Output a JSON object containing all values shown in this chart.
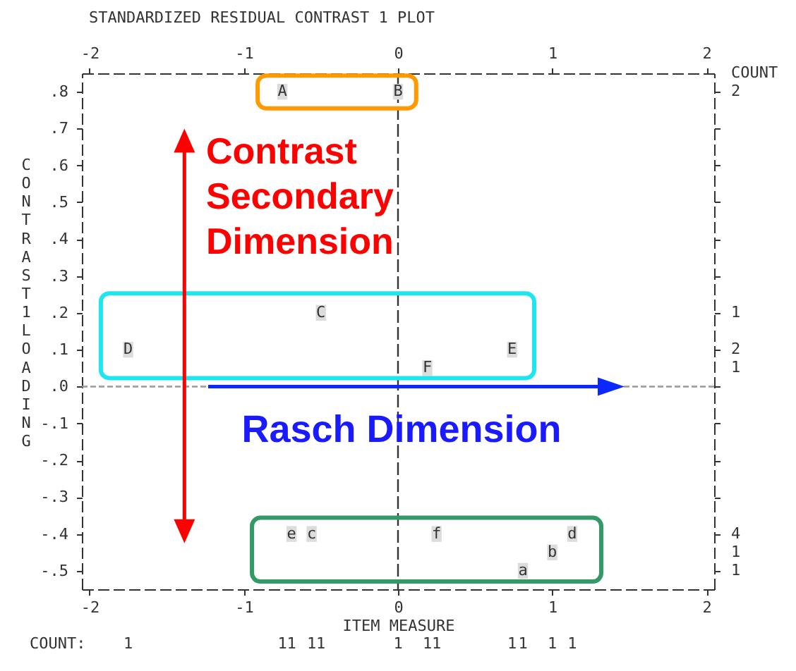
{
  "chart_data": {
    "type": "scatter",
    "marker": "square",
    "title": "STANDARDIZED RESIDUAL CONTRAST 1 PLOT",
    "xlabel": "ITEM MEASURE",
    "ylabel": "CONTRAST 1 LOADING",
    "xlim": [
      -2.05,
      2.05
    ],
    "xticks": [
      -2,
      -1,
      0,
      1,
      2
    ],
    "x2lim": [
      -2.05,
      2.05
    ],
    "x2ticks": [
      -2,
      -1,
      0,
      1,
      2
    ],
    "ylim": [
      -0.55,
      0.85
    ],
    "yticks": [
      {
        "value": 0.8,
        "label": ".8"
      },
      {
        "value": 0.7,
        "label": ".7"
      },
      {
        "value": 0.6,
        "label": ".6"
      },
      {
        "value": 0.5,
        "label": ".5"
      },
      {
        "value": 0.4,
        "label": ".4"
      },
      {
        "value": 0.3,
        "label": ".3"
      },
      {
        "value": 0.2,
        "label": ".2"
      },
      {
        "value": 0.1,
        "label": ".1"
      },
      {
        "value": 0,
        "label": ".0"
      },
      {
        "value": -0.1,
        "label": "-.1"
      },
      {
        "value": -0.2,
        "label": "-.2"
      },
      {
        "value": -0.3,
        "label": "-.3"
      },
      {
        "value": -0.4,
        "label": "-.4"
      },
      {
        "value": -0.5,
        "label": "-.5"
      }
    ],
    "series": [
      {
        "name": "A",
        "color": "#dcdcdc",
        "x": [
          -0.75
        ],
        "values": [
          0.8
        ]
      },
      {
        "name": "B",
        "color": "#dcdcdc",
        "x": [
          0
        ],
        "values": [
          0.8
        ]
      },
      {
        "name": "C",
        "color": "#dcdcdc",
        "x": [
          -0.5
        ],
        "values": [
          0.2
        ]
      },
      {
        "name": "D",
        "color": "#dcdcdc",
        "x": [
          -1.75
        ],
        "values": [
          0.1
        ]
      },
      {
        "name": "E",
        "color": "#dcdcdc",
        "x": [
          0.74
        ],
        "values": [
          0.1
        ]
      },
      {
        "name": "F",
        "color": "#dcdcdc",
        "x": [
          0.19
        ],
        "values": [
          0.05
        ]
      },
      {
        "name": "a",
        "color": "#dcdcdc",
        "x": [
          0.81
        ],
        "values": [
          -0.5
        ]
      },
      {
        "name": "b",
        "color": "#dcdcdc",
        "x": [
          1.0
        ],
        "values": [
          -0.45
        ]
      },
      {
        "name": "c",
        "color": "#dcdcdc",
        "x": [
          -0.56
        ],
        "values": [
          -0.4
        ]
      },
      {
        "name": "d",
        "color": "#dcdcdc",
        "x": [
          1.13
        ],
        "values": [
          -0.4
        ]
      },
      {
        "name": "e",
        "color": "#dcdcdc",
        "x": [
          -0.69
        ],
        "values": [
          -0.4
        ]
      },
      {
        "name": "f",
        "color": "#dcdcdc",
        "x": [
          0.25
        ],
        "values": [
          -0.4
        ]
      }
    ],
    "ref_lines": [
      {
        "axis": "x",
        "value": 0,
        "line_style": "dashed",
        "color": "#333333"
      },
      {
        "axis": "y",
        "value": 0,
        "line_style": "dashed",
        "color": "#999999"
      }
    ],
    "annotations": [
      "Contrast Secondary Dimension",
      "Rasch Dimension",
      "COUNT",
      "COUNT:",
      "1",
      "1",
      "1",
      "1",
      "1",
      "1",
      "1",
      "1",
      "1",
      "1",
      "1",
      "1",
      "2",
      "1",
      "2",
      "1",
      "4",
      "1",
      "1"
    ]
  }
}
